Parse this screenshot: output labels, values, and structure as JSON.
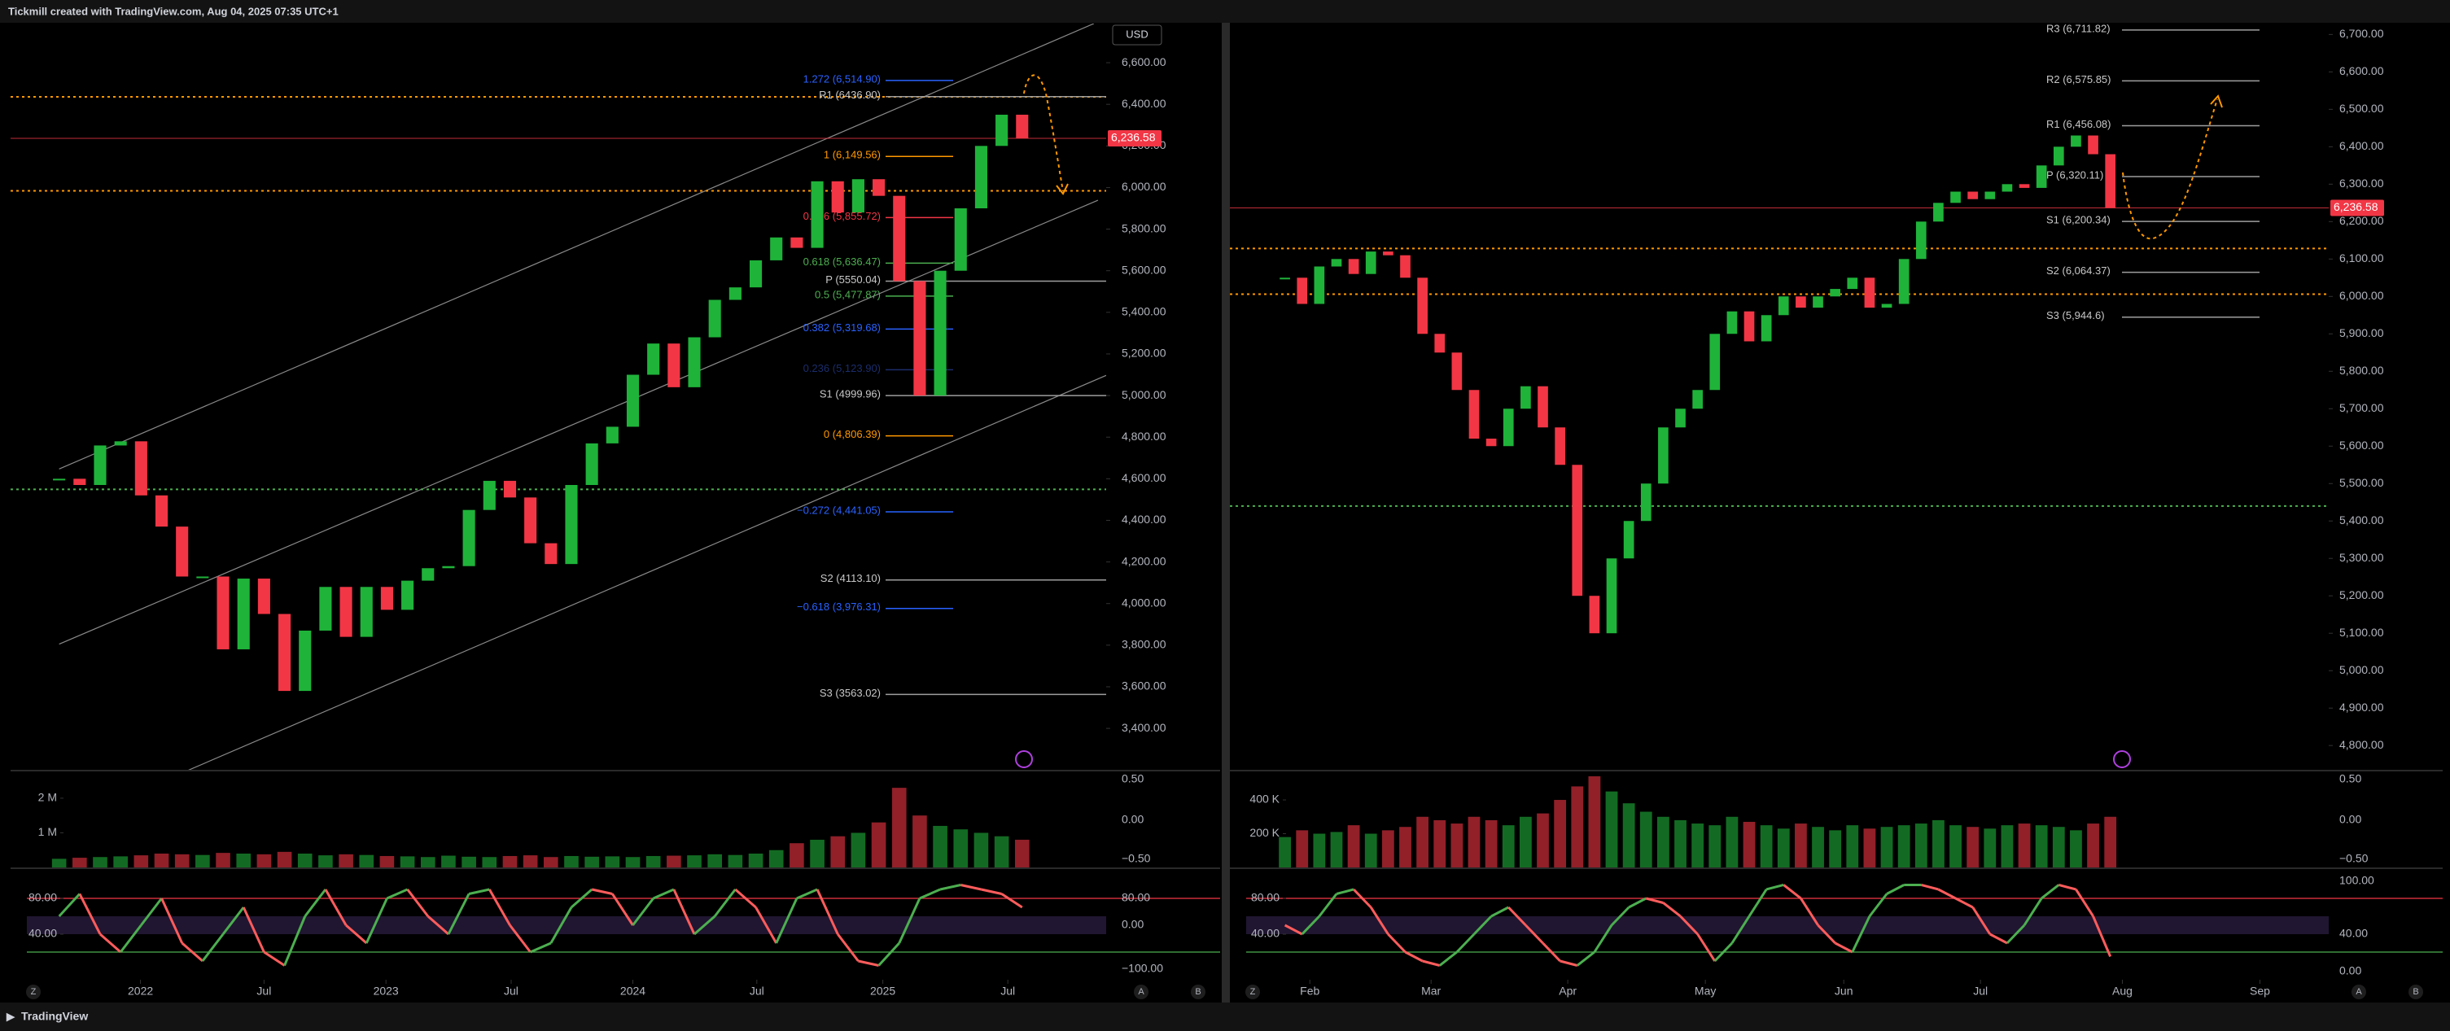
{
  "header": "Tickmill created with TradingView.com, Aug 04, 2025 07:35 UTC+1",
  "footer": "TradingView",
  "chart_data": [
    {
      "type": "candlestick",
      "currency": "USD",
      "values": [
        4600,
        4570,
        4760,
        4780,
        4520,
        4370,
        4130,
        4130,
        3780,
        4120,
        3950,
        3580,
        3870,
        4080,
        3840,
        4080,
        3970,
        4110,
        4170,
        4180,
        4450,
        4590,
        4510,
        4290,
        4190,
        4570,
        4770,
        4850,
        5100,
        5250,
        5040,
        5280,
        5460,
        5520,
        5650,
        5760,
        5710,
        6030,
        5880,
        6040,
        5960,
        5550,
        5000,
        5600,
        5900,
        6200,
        6350,
        6236.58
      ],
      "xlim": [
        -2.37,
        51.1
      ],
      "xticks": [
        {
          "value": 3.97,
          "label": "2022"
        },
        {
          "value": 10,
          "label": "Jul"
        },
        {
          "value": 15.95,
          "label": "2023"
        },
        {
          "value": 22.06,
          "label": "Jul"
        },
        {
          "value": 28,
          "label": "2024"
        },
        {
          "value": 34.05,
          "label": "Jul"
        },
        {
          "value": 40.2,
          "label": "2025"
        },
        {
          "value": 46.3,
          "label": "Jul"
        }
      ],
      "ylim": [
        3197,
        6788
      ],
      "yticks": [
        {
          "value": 3400,
          "label": "3,400.00"
        },
        {
          "value": 3600,
          "label": "3,600.00"
        },
        {
          "value": 3800,
          "label": "3,800.00"
        },
        {
          "value": 4000,
          "label": "4,000.00"
        },
        {
          "value": 4200,
          "label": "4,200.00"
        },
        {
          "value": 4400,
          "label": "4,400.00"
        },
        {
          "value": 4600,
          "label": "4,600.00"
        },
        {
          "value": 4800,
          "label": "4,800.00"
        },
        {
          "value": 5000,
          "label": "5,000.00"
        },
        {
          "value": 5200,
          "label": "5,200.00"
        },
        {
          "value": 5400,
          "label": "5,400.00"
        },
        {
          "value": 5600,
          "label": "5,600.00"
        },
        {
          "value": 5800,
          "label": "5,800.00"
        },
        {
          "value": 6000,
          "label": "6,000.00"
        },
        {
          "value": 6200,
          "label": "6,200.00"
        },
        {
          "value": 6400,
          "label": "6,400.00"
        },
        {
          "value": 6600,
          "label": "6,600.00"
        }
      ],
      "last_price": {
        "value": 6236.58,
        "label": "6,236.58"
      },
      "levels": [
        {
          "value": 6514.9,
          "label": "1.272 (6,514.90)",
          "style": "fib",
          "color": "#2962ff"
        },
        {
          "value": 6436.9,
          "label": "R1 (6436.90)",
          "style": "pivot",
          "color": "#9e9e9e"
        },
        {
          "value": 6149.56,
          "label": "1 (6,149.56)",
          "style": "fib",
          "color": "#ff9800"
        },
        {
          "value": 5855.72,
          "label": "0.786 (5,855.72)",
          "style": "fib",
          "color": "#f23645"
        },
        {
          "value": 5636.47,
          "label": "0.618 (5,636.47)",
          "style": "fib",
          "color": "#4caf50"
        },
        {
          "value": 5550.04,
          "label": "P (5550.04)",
          "style": "pivot",
          "color": "#9e9e9e"
        },
        {
          "value": 5477.87,
          "label": "0.5 (5,477.87)",
          "style": "fib",
          "color": "#4caf50"
        },
        {
          "value": 5319.68,
          "label": "0.382 (5,319.68)",
          "style": "fib",
          "color": "#2962ff"
        },
        {
          "value": 5123.9,
          "label": "0.236 (5,123.90)",
          "style": "fib",
          "color": "#1a2d6b"
        },
        {
          "value": 4999.96,
          "label": "S1 (4999.96)",
          "style": "pivot",
          "color": "#9e9e9e"
        },
        {
          "value": 4806.39,
          "label": "0 (4,806.39)",
          "style": "fib",
          "color": "#ff9800"
        },
        {
          "value": 4441.05,
          "label": "−0.272 (4,441.05)",
          "style": "fib",
          "color": "#2962ff"
        },
        {
          "value": 4113.1,
          "label": "S2 (4113.10)",
          "style": "pivot",
          "color": "#9e9e9e"
        },
        {
          "value": 3976.31,
          "label": "−0.618 (3,976.31)",
          "style": "fib",
          "color": "#2962ff"
        },
        {
          "value": 3563.02,
          "label": "S3 (3563.02)",
          "style": "pivot",
          "color": "#9e9e9e"
        }
      ],
      "dotted_levels": [
        {
          "value": 6436,
          "color": "#ff9800"
        },
        {
          "value": 5984,
          "color": "#ff9800"
        },
        {
          "value": 4549,
          "color": "#4caf50"
        }
      ],
      "trendlines": [
        [
          0,
          4647,
          50.5,
          6788
        ],
        [
          0,
          3805,
          50.7,
          5939
        ],
        [
          6.26,
          3197,
          51.1,
          5097
        ]
      ],
      "volume": {
        "values": [
          250000,
          280000,
          300000,
          320000,
          350000,
          400000,
          380000,
          360000,
          420000,
          400000,
          380000,
          450000,
          400000,
          350000,
          380000,
          360000,
          330000,
          320000,
          300000,
          340000,
          310000,
          300000,
          330000,
          350000,
          300000,
          330000,
          310000,
          320000,
          300000,
          330000,
          340000,
          350000,
          380000,
          360000,
          400000,
          500000,
          700000,
          800000,
          900000,
          1000000,
          1300000,
          2300000,
          1500000,
          1200000,
          1100000,
          1000000,
          900000,
          800000
        ],
        "ylim": [
          0,
          2750000
        ],
        "yticks": [
          {
            "value": 1000000,
            "label": "1 M"
          },
          {
            "value": 2000000,
            "label": "2 M"
          }
        ],
        "right_labels": [
          "0.50",
          "0.00",
          "−0.50"
        ]
      },
      "oscillator": {
        "values": [
          60,
          85,
          40,
          20,
          50,
          80,
          30,
          10,
          40,
          70,
          20,
          5,
          60,
          90,
          50,
          30,
          80,
          90,
          60,
          40,
          85,
          90,
          50,
          20,
          30,
          70,
          90,
          85,
          50,
          80,
          90,
          40,
          60,
          90,
          70,
          30,
          80,
          90,
          40,
          10,
          5,
          30,
          80,
          90,
          95,
          90,
          85,
          70
        ],
        "ylim": [
          -10.9,
          111.8
        ],
        "yticks": [
          {
            "value": 80,
            "label": "80.00"
          },
          {
            "value": 40,
            "label": "40.00"
          }
        ],
        "bands": [
          {
            "value": 80,
            "color": "#f23645"
          },
          {
            "value": 20,
            "color": "#4caf50"
          }
        ],
        "right_labels": [
          "80.00",
          "0.00",
          "−100.00"
        ]
      },
      "buttons": [
        "Z",
        "A",
        "B"
      ]
    },
    {
      "type": "candlestick",
      "values": [
        6050,
        5980,
        6080,
        6100,
        6060,
        6120,
        6110,
        6050,
        5900,
        5850,
        5750,
        5620,
        5600,
        5700,
        5760,
        5650,
        5550,
        5200,
        5100,
        5300,
        5400,
        5500,
        5650,
        5700,
        5750,
        5900,
        5960,
        5880,
        5950,
        6000,
        5970,
        6000,
        6020,
        6050,
        5970,
        5980,
        6100,
        6200,
        6250,
        6280,
        6260,
        6280,
        6300,
        6290,
        6350,
        6400,
        6430,
        6380,
        6236.58
      ],
      "xlim": [
        -3.2,
        60.7
      ],
      "xticks": [
        {
          "value": 1.45,
          "label": "Feb"
        },
        {
          "value": 8.5,
          "label": "Mar"
        },
        {
          "value": 16.45,
          "label": "Apr"
        },
        {
          "value": 24.45,
          "label": "May"
        },
        {
          "value": 32.5,
          "label": "Jun"
        },
        {
          "value": 40.45,
          "label": "Jul"
        },
        {
          "value": 48.7,
          "label": "Aug"
        },
        {
          "value": 56.7,
          "label": "Sep"
        }
      ],
      "ylim": [
        4733,
        6729
      ],
      "yticks": [
        {
          "value": 4800,
          "label": "4,800.00"
        },
        {
          "value": 4900,
          "label": "4,900.00"
        },
        {
          "value": 5000,
          "label": "5,000.00"
        },
        {
          "value": 5100,
          "label": "5,100.00"
        },
        {
          "value": 5200,
          "label": "5,200.00"
        },
        {
          "value": 5300,
          "label": "5,300.00"
        },
        {
          "value": 5400,
          "label": "5,400.00"
        },
        {
          "value": 5500,
          "label": "5,500.00"
        },
        {
          "value": 5600,
          "label": "5,600.00"
        },
        {
          "value": 5700,
          "label": "5,700.00"
        },
        {
          "value": 5800,
          "label": "5,800.00"
        },
        {
          "value": 5900,
          "label": "5,900.00"
        },
        {
          "value": 6000,
          "label": "6,000.00"
        },
        {
          "value": 6100,
          "label": "6,100.00"
        },
        {
          "value": 6200,
          "label": "6,200.00"
        },
        {
          "value": 6300,
          "label": "6,300.00"
        },
        {
          "value": 6400,
          "label": "6,400.00"
        },
        {
          "value": 6500,
          "label": "6,500.00"
        },
        {
          "value": 6600,
          "label": "6,600.00"
        },
        {
          "value": 6700,
          "label": "6,700.00"
        }
      ],
      "last_price": {
        "value": 6236.58,
        "label": "6,236.58"
      },
      "levels": [
        {
          "value": 6711.82,
          "label": "R3 (6,711.82)",
          "style": "pivot",
          "color": "#9e9e9e"
        },
        {
          "value": 6575.85,
          "label": "R2 (6,575.85)",
          "style": "pivot",
          "color": "#9e9e9e"
        },
        {
          "value": 6456.08,
          "label": "R1 (6,456.08)",
          "style": "pivot",
          "color": "#9e9e9e"
        },
        {
          "value": 6320.11,
          "label": "P (6,320.11)",
          "style": "pivot",
          "color": "#9e9e9e"
        },
        {
          "value": 6200.34,
          "label": "S1 (6,200.34)",
          "style": "pivot",
          "color": "#9e9e9e"
        },
        {
          "value": 6064.37,
          "label": "S2 (6,064.37)",
          "style": "pivot",
          "color": "#9e9e9e"
        },
        {
          "value": 5944.6,
          "label": "S3 (5,944.6)",
          "style": "pivot",
          "color": "#9e9e9e"
        }
      ],
      "dotted_levels": [
        {
          "value": 6128,
          "color": "#ff9800"
        },
        {
          "value": 6006,
          "color": "#ff9800"
        },
        {
          "value": 5440,
          "color": "#4caf50"
        }
      ],
      "trendlines": [],
      "volume": {
        "values": [
          180000,
          220000,
          200000,
          210000,
          250000,
          200000,
          220000,
          240000,
          300000,
          280000,
          260000,
          300000,
          280000,
          250000,
          300000,
          320000,
          400000,
          480000,
          540000,
          450000,
          380000,
          330000,
          300000,
          280000,
          260000,
          250000,
          300000,
          270000,
          250000,
          230000,
          260000,
          240000,
          220000,
          250000,
          230000,
          240000,
          250000,
          260000,
          280000,
          250000,
          240000,
          230000,
          250000,
          260000,
          250000,
          240000,
          220000,
          260000,
          300000
        ],
        "ylim": [
          0,
          564000
        ],
        "yticks": [
          {
            "value": 200000,
            "label": "200 K"
          },
          {
            "value": 400000,
            "label": "400 K"
          }
        ],
        "right_labels": [
          "0.50",
          "0.00",
          "−0.50"
        ]
      },
      "oscillator": {
        "values": [
          50,
          40,
          60,
          85,
          90,
          70,
          40,
          20,
          10,
          5,
          20,
          40,
          60,
          70,
          50,
          30,
          10,
          5,
          20,
          50,
          70,
          80,
          75,
          60,
          40,
          10,
          30,
          60,
          90,
          95,
          80,
          50,
          30,
          20,
          60,
          85,
          95,
          95,
          90,
          80,
          70,
          40,
          30,
          50,
          80,
          95,
          90,
          60,
          15
        ],
        "ylim": [
          -10.9,
          111.8
        ],
        "yticks": [
          {
            "value": 80,
            "label": "80.00"
          },
          {
            "value": 40,
            "label": "40.00"
          }
        ],
        "bands": [
          {
            "value": 80,
            "color": "#f23645"
          },
          {
            "value": 20,
            "color": "#4caf50"
          }
        ],
        "right_labels": [
          "100.00",
          "40.00",
          "0.00"
        ]
      },
      "buttons": [
        "Z",
        "A",
        "B"
      ]
    }
  ]
}
